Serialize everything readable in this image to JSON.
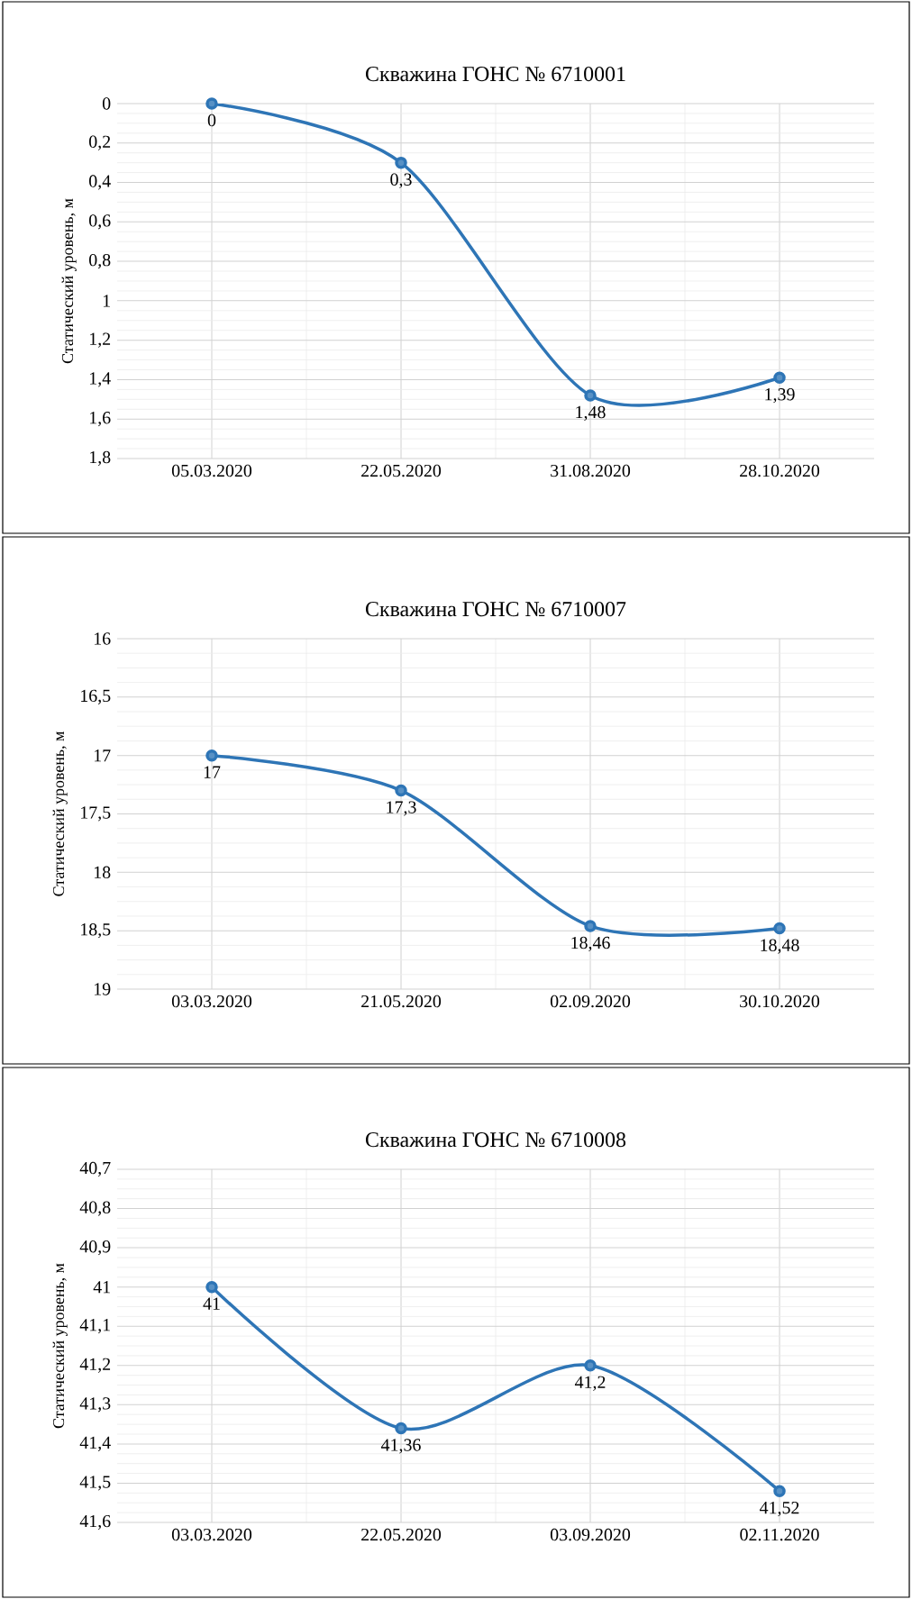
{
  "chart_data": [
    {
      "type": "line",
      "title": "Скважина ГОНС № 6710001",
      "ylabel": "Статический уровень, м",
      "categories": [
        "05.03.2020",
        "22.05.2020",
        "31.08.2020",
        "28.10.2020"
      ],
      "series": [
        {
          "color": "#2e75b6",
          "values": [
            0,
            0.3,
            1.48,
            1.39
          ],
          "value_labels": [
            "0",
            "0,3",
            "1,48",
            "1,39"
          ]
        }
      ],
      "ylim": [
        1.8,
        0
      ],
      "yticks": [
        0,
        {
          "value": 0.2,
          "label": "0,2"
        },
        {
          "value": 0.4,
          "label": "0,4"
        },
        {
          "value": 0.6,
          "label": "0,6"
        },
        {
          "value": 0.8,
          "label": "0,8"
        },
        1,
        {
          "value": 1.2,
          "label": "1,2"
        },
        {
          "value": 1.4,
          "label": "1,4"
        },
        {
          "value": 1.6,
          "label": "1,6"
        },
        {
          "value": 1.8,
          "label": "1,8"
        }
      ],
      "grid": true,
      "marker": "circle"
    },
    {
      "type": "line",
      "title": "Скважина ГОНС № 6710007",
      "ylabel": "Статический уровень, м",
      "categories": [
        "03.03.2020",
        "21.05.2020",
        "02.09.2020",
        "30.10.2020"
      ],
      "series": [
        {
          "color": "#2e75b6",
          "values": [
            17,
            17.3,
            18.46,
            18.48
          ],
          "value_labels": [
            "17",
            "17,3",
            "18,46",
            "18,48"
          ]
        }
      ],
      "ylim": [
        19,
        16
      ],
      "yticks": [
        16,
        {
          "value": 16.5,
          "label": "16,5"
        },
        17,
        {
          "value": 17.5,
          "label": "17,5"
        },
        18,
        {
          "value": 18.5,
          "label": "18,5"
        },
        19
      ],
      "grid": true,
      "marker": "circle"
    },
    {
      "type": "line",
      "title": "Скважина ГОНС № 6710008",
      "ylabel": "Статический уровень, м",
      "categories": [
        "03.03.2020",
        "22.05.2020",
        "03.09.2020",
        "02.11.2020"
      ],
      "series": [
        {
          "color": "#2e75b6",
          "values": [
            41,
            41.36,
            41.2,
            41.52
          ],
          "value_labels": [
            "41",
            "41,36",
            "41,2",
            "41,52"
          ]
        }
      ],
      "ylim": [
        41.6,
        40.7
      ],
      "yticks": [
        {
          "value": 40.7,
          "label": "40,7"
        },
        {
          "value": 40.8,
          "label": "40,8"
        },
        {
          "value": 40.9,
          "label": "40,9"
        },
        41,
        {
          "value": 41.1,
          "label": "41,1"
        },
        {
          "value": 41.2,
          "label": "41,2"
        },
        {
          "value": 41.3,
          "label": "41,3"
        },
        {
          "value": 41.4,
          "label": "41,4"
        },
        {
          "value": 41.5,
          "label": "41,5"
        },
        {
          "value": 41.6,
          "label": "41,6"
        }
      ],
      "grid": true,
      "marker": "circle"
    }
  ]
}
